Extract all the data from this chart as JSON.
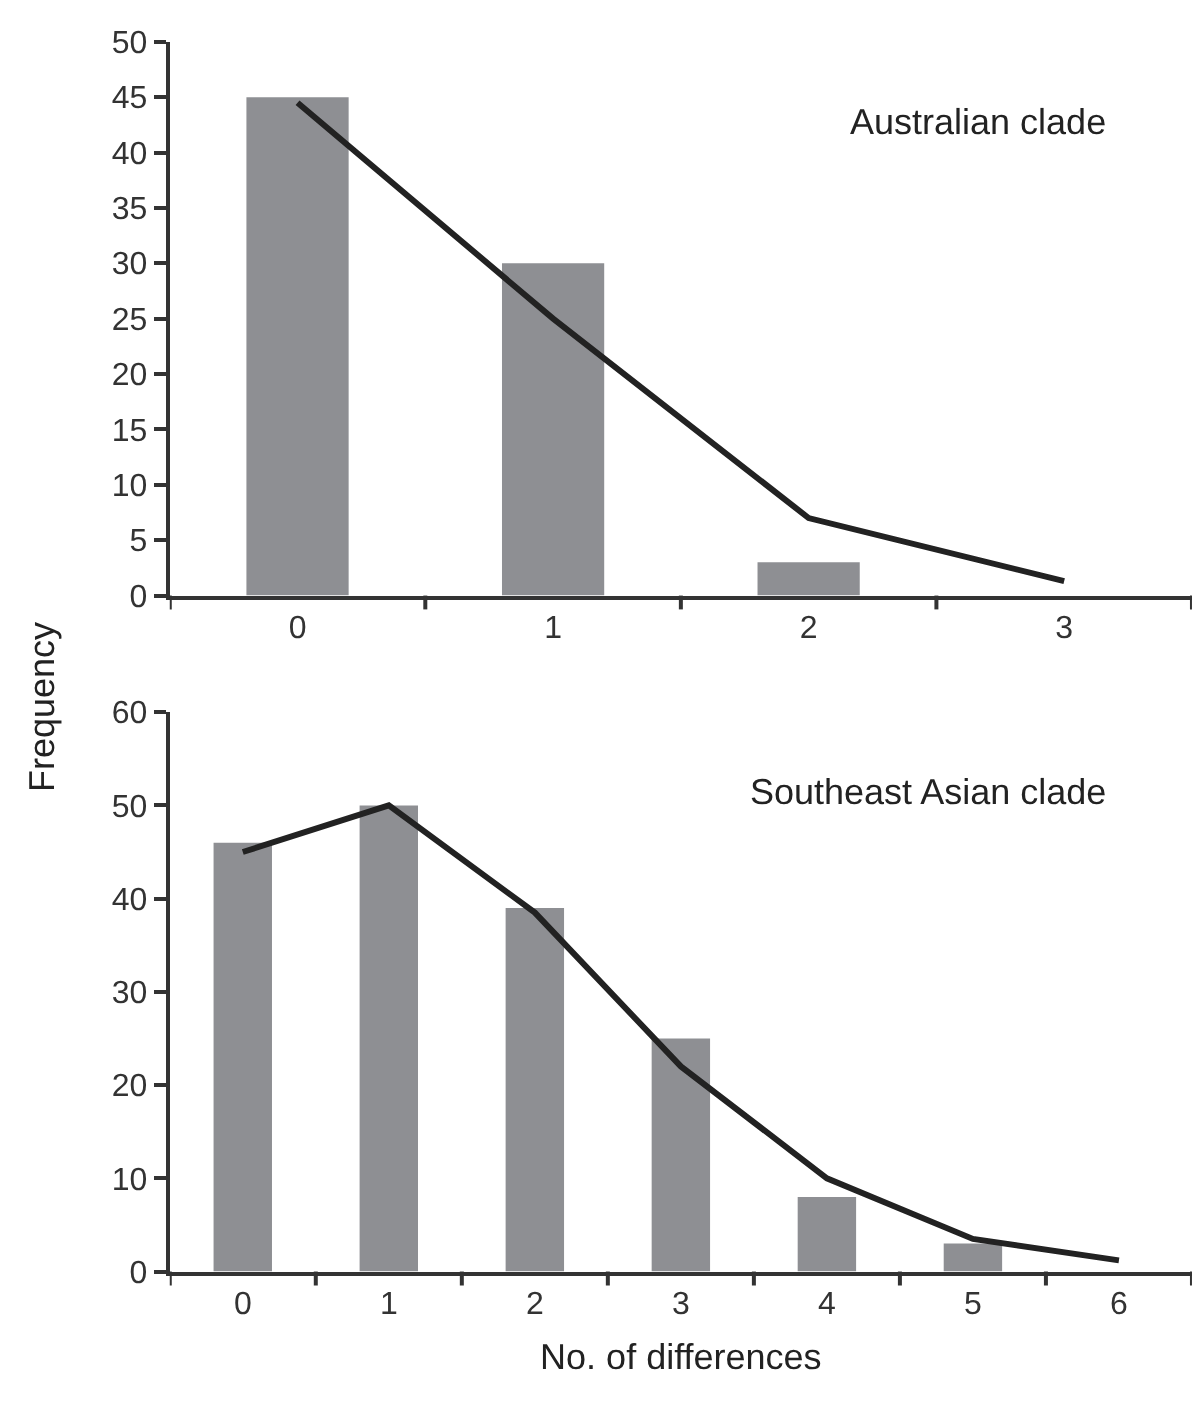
{
  "chart_data": [
    {
      "type": "bar",
      "categories": [
        "0",
        "1",
        "2",
        "3"
      ],
      "ylabel": "Frequency",
      "ylim": [
        0,
        50
      ],
      "yticks": [
        0,
        5,
        10,
        15,
        20,
        25,
        30,
        35,
        40,
        45,
        50
      ],
      "annotations": [
        "Australian clade"
      ],
      "series": [
        {
          "color": "#8e8f93",
          "values": [
            45,
            30,
            3,
            null
          ]
        },
        {
          "type": "line",
          "color": "#222222",
          "values": [
            44.5,
            25,
            7,
            1.3
          ]
        }
      ]
    },
    {
      "type": "bar",
      "categories": [
        "0",
        "1",
        "2",
        "3",
        "4",
        "5",
        "6"
      ],
      "xlabel": "No. of differences",
      "ylim": [
        0,
        60
      ],
      "yticks": [
        0,
        10,
        20,
        30,
        40,
        50,
        60
      ],
      "annotations": [
        "Southeast Asian clade"
      ],
      "series": [
        {
          "color": "#8e8f93",
          "values": [
            46,
            50,
            39,
            25,
            8,
            3,
            null
          ]
        },
        {
          "type": "line",
          "color": "#222222",
          "values": [
            45,
            50,
            38.5,
            22,
            10,
            3.5,
            1.2
          ]
        }
      ]
    }
  ]
}
